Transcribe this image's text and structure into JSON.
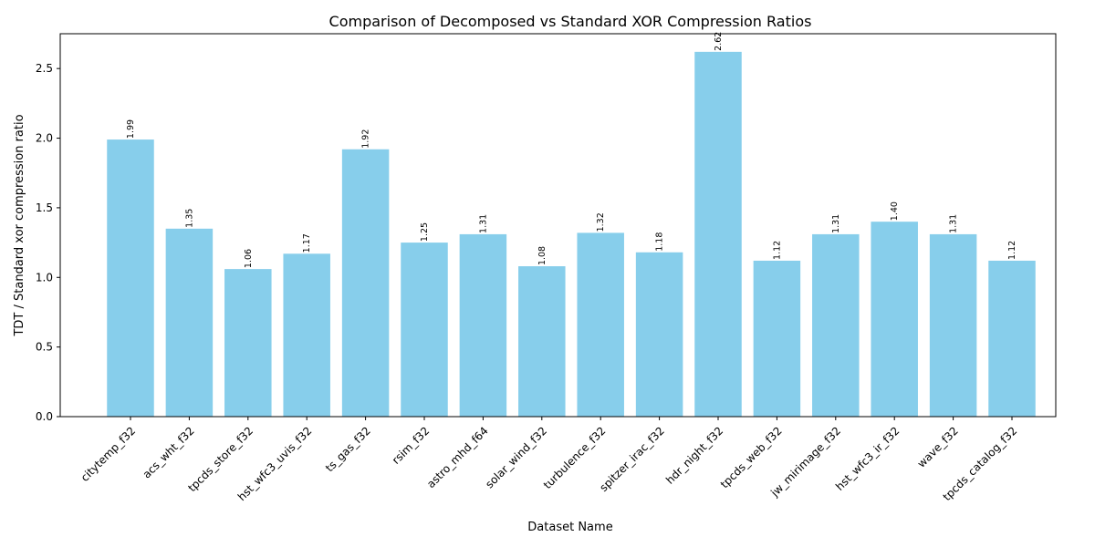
{
  "chart_data": {
    "type": "bar",
    "title": "Comparison of Decomposed vs Standard XOR Compression Ratios",
    "xlabel": "Dataset Name",
    "ylabel": "TDT / Standard xor compression ratio",
    "ylim": [
      0,
      2.75
    ],
    "yticks": [
      "0.0",
      "0.5",
      "1.0",
      "1.5",
      "2.0",
      "2.5"
    ],
    "grid": false,
    "bar_color": "#87ceeb",
    "categories": [
      "citytemp_f32",
      "acs_wht_f32",
      "tpcds_store_f32",
      "hst_wfc3_uvis_f32",
      "ts_gas_f32",
      "rsim_f32",
      "astro_mhd_f64",
      "solar_wind_f32",
      "turbulence_f32",
      "spitzer_irac_f32",
      "hdr_night_f32",
      "tpcds_web_f32",
      "jw_mirimage_f32",
      "hst_wfc3_ir_f32",
      "wave_f32",
      "tpcds_catalog_f32"
    ],
    "values": [
      1.99,
      1.35,
      1.06,
      1.17,
      1.92,
      1.25,
      1.31,
      1.08,
      1.32,
      1.18,
      2.62,
      1.12,
      1.31,
      1.4,
      1.31,
      1.12
    ],
    "value_labels": [
      "1.99",
      "1.35",
      "1.06",
      "1.17",
      "1.92",
      "1.25",
      "1.31",
      "1.08",
      "1.32",
      "1.18",
      "2.62",
      "1.12",
      "1.31",
      "1.40",
      "1.31",
      "1.12"
    ]
  }
}
